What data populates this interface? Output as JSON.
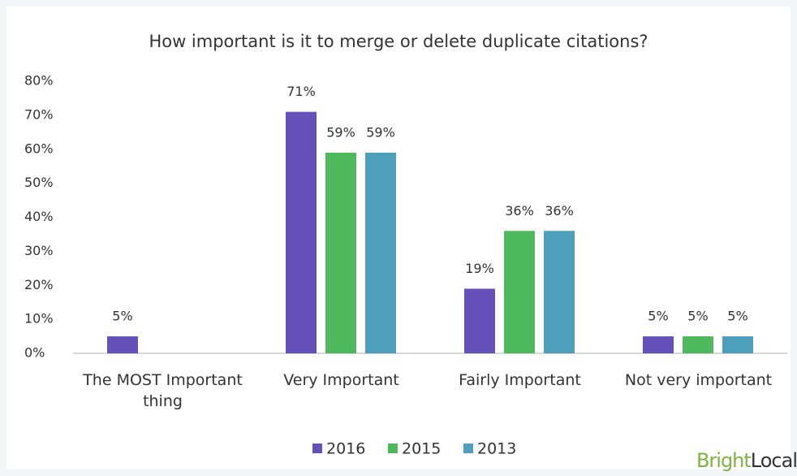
{
  "chart_data": {
    "type": "bar",
    "title": "How important is it to merge or delete duplicate citations?",
    "categories": [
      "The MOST Important thing",
      "Very Important",
      "Fairly Important",
      "Not very important"
    ],
    "series": [
      {
        "name": "2016",
        "color": "#6650b9",
        "values": [
          5,
          71,
          19,
          5
        ],
        "value_labels": [
          "5%",
          "71%",
          "19%",
          "5%"
        ]
      },
      {
        "name": "2015",
        "color": "#4db85c",
        "values": [
          null,
          59,
          36,
          5
        ],
        "value_labels": [
          null,
          "59%",
          "36%",
          "5%"
        ]
      },
      {
        "name": "2013",
        "color": "#4e9fbb",
        "values": [
          null,
          59,
          36,
          5
        ],
        "value_labels": [
          null,
          "59%",
          "36%",
          "5%"
        ]
      }
    ],
    "ylim": [
      0,
      80
    ],
    "yticks": [
      {
        "value": 0,
        "label": "0%"
      },
      {
        "value": 10,
        "label": "10%"
      },
      {
        "value": 20,
        "label": "20%"
      },
      {
        "value": 30,
        "label": "30%"
      },
      {
        "value": 40,
        "label": "40%"
      },
      {
        "value": 50,
        "label": "50%"
      },
      {
        "value": 60,
        "label": "60%"
      },
      {
        "value": 70,
        "label": "70%"
      },
      {
        "value": 80,
        "label": "80%"
      }
    ],
    "grid": false,
    "legend": "bottom",
    "brand": [
      "Bright",
      "Local"
    ]
  }
}
